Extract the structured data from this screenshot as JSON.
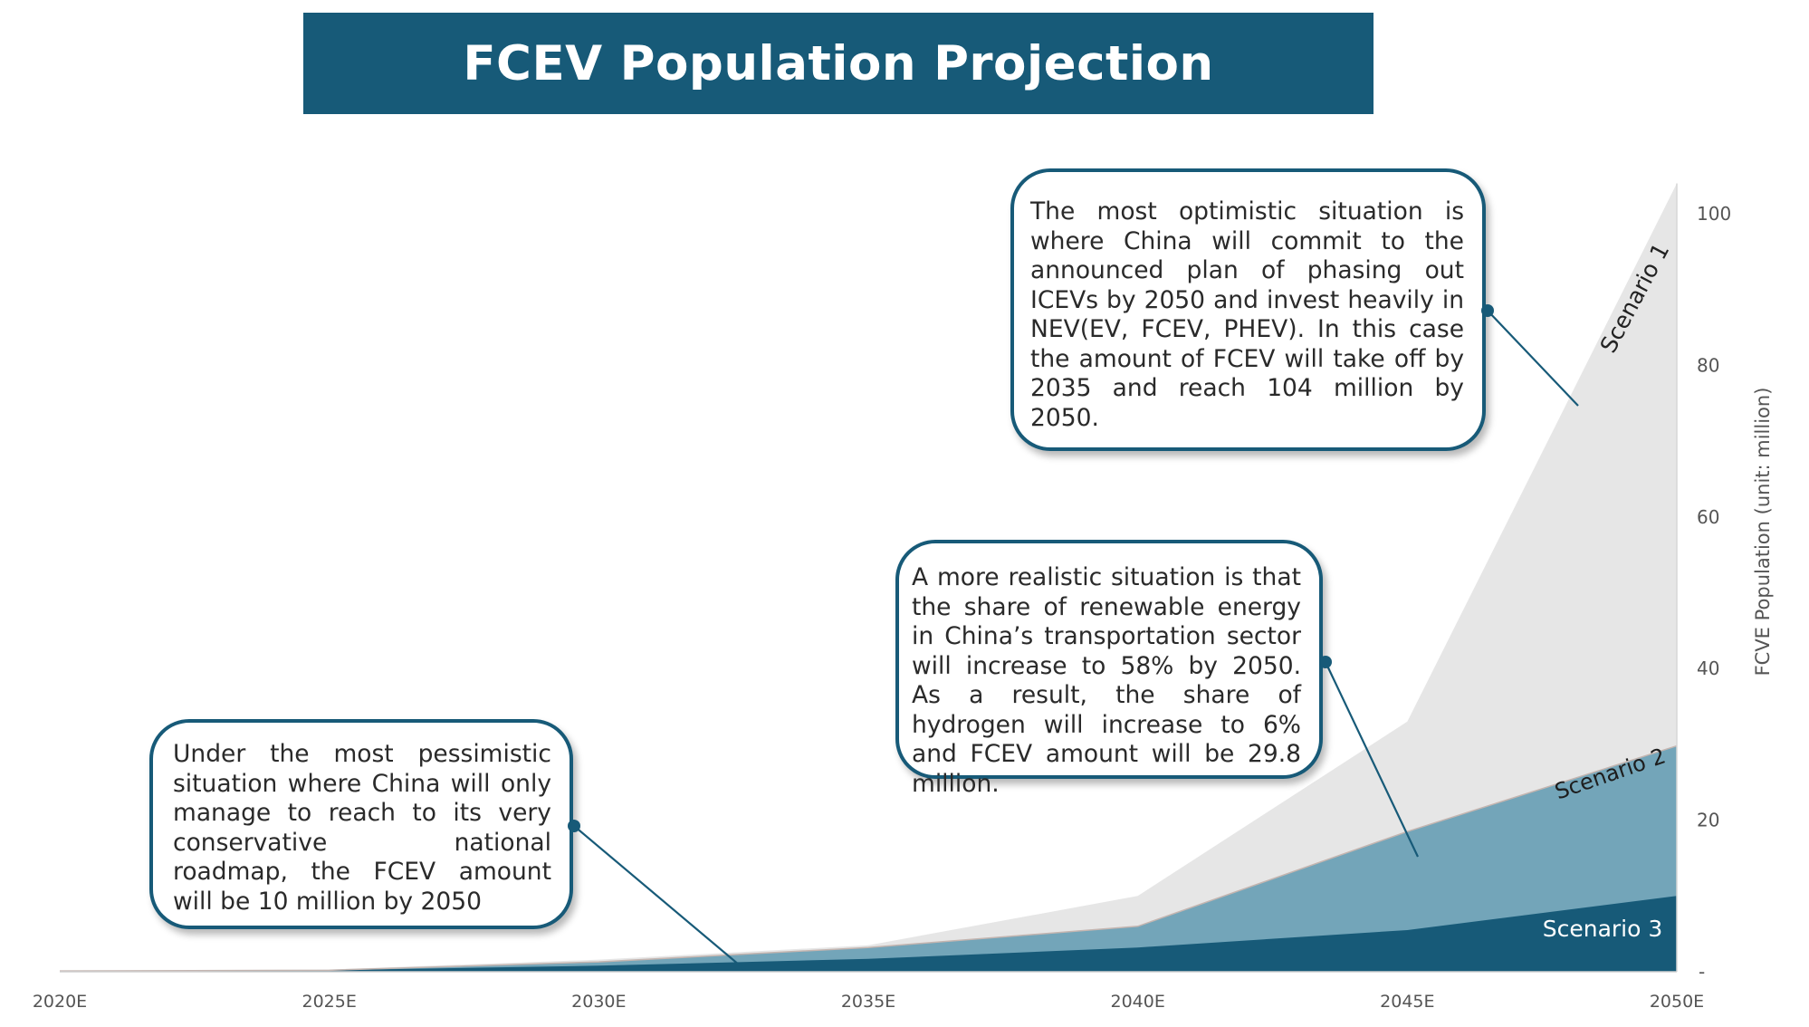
{
  "title": "FCEV Population Projection",
  "callouts": {
    "scenario1": "The most optimistic situation is where China will commit to the announced plan of phasing out ICEVs by 2050 and invest heavily in NEV(EV, FCEV, PHEV). In this case the amount of FCEV will take off by 2035 and reach 104 million by 2050.",
    "scenario2": "A more realistic situation is that the share of renewable energy in China’s transportation sector will increase to 58% by 2050. As a result, the share of hydrogen will increase to 6% and FCEV amount will be 29.8 million.",
    "scenario3": "Under the most pessimistic situation where China will only manage to reach to its very conservative national roadmap, the FCEV amount will be 10 million by 2050"
  },
  "chart_data": {
    "type": "area",
    "x": [
      "2020E",
      "2025E",
      "2030E",
      "2035E",
      "2040E",
      "2045E",
      "2050E"
    ],
    "ylabel": "FCVE Population (unit: million)",
    "yticks": [
      {
        "value": 0,
        "label": "-"
      },
      {
        "value": 20,
        "label": "20"
      },
      {
        "value": 40,
        "label": "40"
      },
      {
        "value": 60,
        "label": "60"
      },
      {
        "value": 80,
        "label": "80"
      },
      {
        "value": 100,
        "label": "100"
      }
    ],
    "ylim": [
      0,
      104
    ],
    "series": [
      {
        "name": "Scenario 1",
        "values": [
          0.1,
          0.3,
          1.6,
          3.5,
          10.0,
          33.0,
          104.0
        ],
        "color": "#e6e6e6"
      },
      {
        "name": "Scenario 2",
        "values": [
          0.1,
          0.2,
          1.3,
          3.2,
          6.0,
          18.5,
          29.8
        ],
        "color": "#73a5b9"
      },
      {
        "name": "Scenario 3",
        "values": [
          0.1,
          0.2,
          0.8,
          1.7,
          3.2,
          5.5,
          10.0
        ],
        "color": "#175a78"
      }
    ]
  }
}
